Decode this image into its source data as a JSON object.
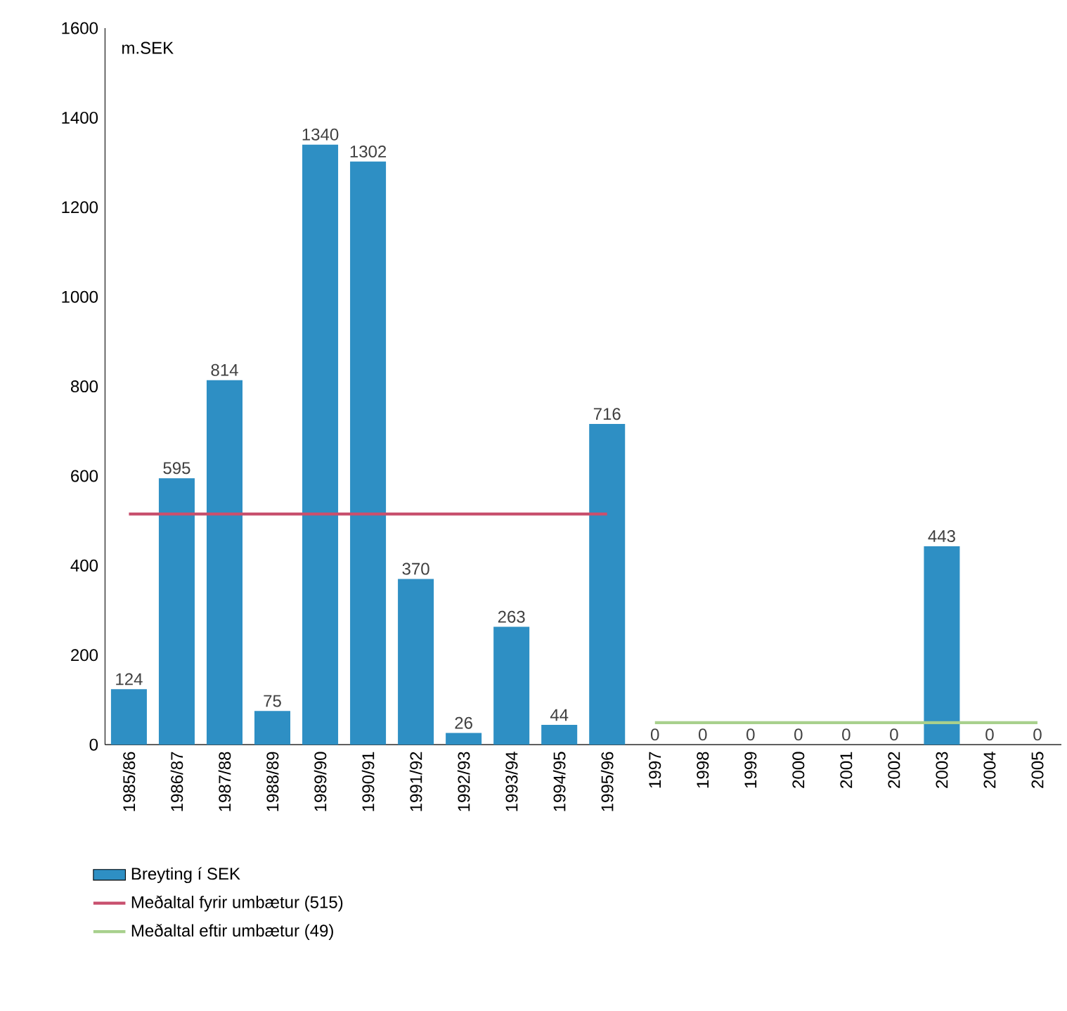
{
  "chart_data": {
    "type": "bar",
    "ylabel": "m.SEK",
    "categories": [
      "1985/86",
      "1986/87",
      "1987/88",
      "1988/89",
      "1989/90",
      "1990/91",
      "1991/92",
      "1992/93",
      "1993/94",
      "1994/95",
      "1995/96",
      "1997",
      "1998",
      "1999",
      "2000",
      "2001",
      "2002",
      "2003",
      "2004",
      "2005"
    ],
    "series": [
      {
        "name": "Breyting í SEK",
        "color": "#2e8fc4",
        "values": [
          124,
          595,
          814,
          75,
          1340,
          1302,
          370,
          26,
          263,
          44,
          716,
          0,
          0,
          0,
          0,
          0,
          0,
          443,
          0,
          0
        ],
        "value_labels": [
          "124",
          "595",
          "814",
          "75",
          "1340",
          "1302",
          "370",
          "26",
          "263",
          "44",
          "716",
          "0",
          "0",
          "0",
          "0",
          "0",
          "0",
          "443",
          "0",
          "0"
        ]
      },
      {
        "name": "Meðaltal fyrir umbætur (515)",
        "type": "line",
        "color": "#c8506e",
        "values": [
          515,
          515,
          515,
          515,
          515,
          515,
          515,
          515,
          515,
          515,
          515,
          null,
          null,
          null,
          null,
          null,
          null,
          null,
          null,
          null
        ]
      },
      {
        "name": "Meðaltal eftir umbætur (49)",
        "type": "line",
        "color": "#a8d08d",
        "values": [
          null,
          null,
          null,
          null,
          null,
          null,
          null,
          null,
          null,
          null,
          null,
          49,
          49,
          49,
          49,
          49,
          49,
          49,
          49,
          49
        ]
      }
    ],
    "ylim": [
      0,
      1600
    ],
    "yticks": [
      0,
      200,
      400,
      600,
      800,
      1000,
      1200,
      1400,
      1600
    ],
    "legend": "bottom left"
  }
}
